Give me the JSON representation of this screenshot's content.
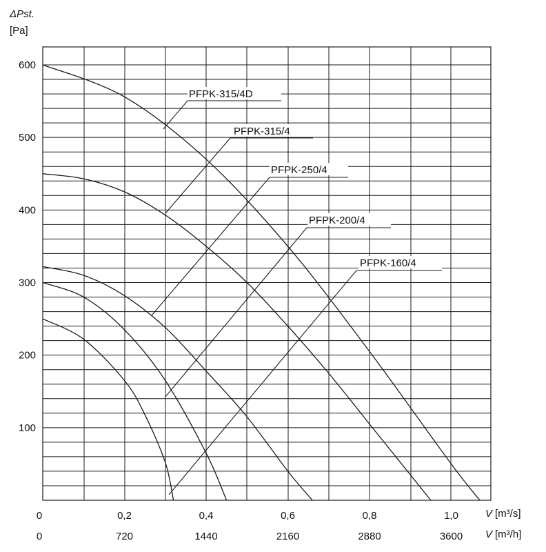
{
  "chart_data": {
    "type": "line",
    "ylabel_symbol": "ΔPst.",
    "ylabel_unit": "[Pa]",
    "xlabel_m3s": "V [m³/s]",
    "xlabel_m3h": "V [m³/h]",
    "xlabel_m3s_symbol": "V",
    "xlabel_m3s_unit": "[m³/s]",
    "xlabel_m3h_symbol": "V",
    "xlabel_m3h_unit": "[m³/h]",
    "xlim": [
      0,
      1.1
    ],
    "ylim": [
      0,
      620
    ],
    "grid": true,
    "y_ticks": [
      {
        "value": 100,
        "label": "100"
      },
      {
        "value": 200,
        "label": "200"
      },
      {
        "value": 300,
        "label": "300"
      },
      {
        "value": 400,
        "label": "400"
      },
      {
        "value": 500,
        "label": "500"
      },
      {
        "value": 600,
        "label": "600"
      }
    ],
    "x_ticks_m3s": [
      {
        "value": 0,
        "label": "0"
      },
      {
        "value": 0.2,
        "label": "0,2"
      },
      {
        "value": 0.4,
        "label": "0,4"
      },
      {
        "value": 0.6,
        "label": "0,6"
      },
      {
        "value": 0.8,
        "label": "0,8"
      },
      {
        "value": 1.0,
        "label": "1,0"
      }
    ],
    "x_ticks_m3h": [
      {
        "value": 0,
        "label": "0"
      },
      {
        "value": 0.2,
        "label": "720"
      },
      {
        "value": 0.4,
        "label": "1440"
      },
      {
        "value": 0.6,
        "label": "2160"
      },
      {
        "value": 0.8,
        "label": "2880"
      },
      {
        "value": 1.0,
        "label": "3600"
      }
    ],
    "series": [
      {
        "name": "PFPK-315/4D",
        "color": "#1a1a1a",
        "x": [
          0,
          0.2,
          0.4,
          0.6,
          0.8,
          1.0,
          1.07
        ],
        "y": [
          600,
          556,
          470,
          350,
          205,
          50,
          0
        ]
      },
      {
        "name": "PFPK-315/4",
        "color": "#1414c8",
        "x": [
          0,
          0.1,
          0.2,
          0.3,
          0.4,
          0.5,
          0.6,
          0.7,
          0.8,
          0.9,
          0.95
        ],
        "y": [
          450,
          443,
          425,
          393,
          350,
          300,
          240,
          175,
          105,
          35,
          0
        ]
      },
      {
        "name": "PFPK-250/4",
        "color": "#1a1a1a",
        "x": [
          0,
          0.1,
          0.2,
          0.3,
          0.4,
          0.5,
          0.6,
          0.66
        ],
        "y": [
          322,
          310,
          282,
          238,
          178,
          115,
          40,
          0
        ]
      },
      {
        "name": "PFPK-200/4",
        "color": "#1a1a1a",
        "x": [
          0,
          0.1,
          0.2,
          0.3,
          0.4,
          0.45
        ],
        "y": [
          300,
          280,
          235,
          165,
          65,
          0
        ]
      },
      {
        "name": "PFPK-160/4",
        "color": "#1a1a1a",
        "x": [
          0,
          0.1,
          0.2,
          0.25,
          0.3,
          0.32
        ],
        "y": [
          250,
          222,
          165,
          118,
          52,
          0
        ]
      }
    ],
    "annotations": [
      {
        "text": "PFPK-315/4D",
        "series": "PFPK-315/4D"
      },
      {
        "text": "PFPK-315/4",
        "series": "PFPK-315/4"
      },
      {
        "text": "PFPK-250/4",
        "series": "PFPK-250/4"
      },
      {
        "text": "PFPK-200/4",
        "series": "PFPK-200/4"
      },
      {
        "text": "PFPK-160/4",
        "series": "PFPK-160/4"
      }
    ]
  }
}
